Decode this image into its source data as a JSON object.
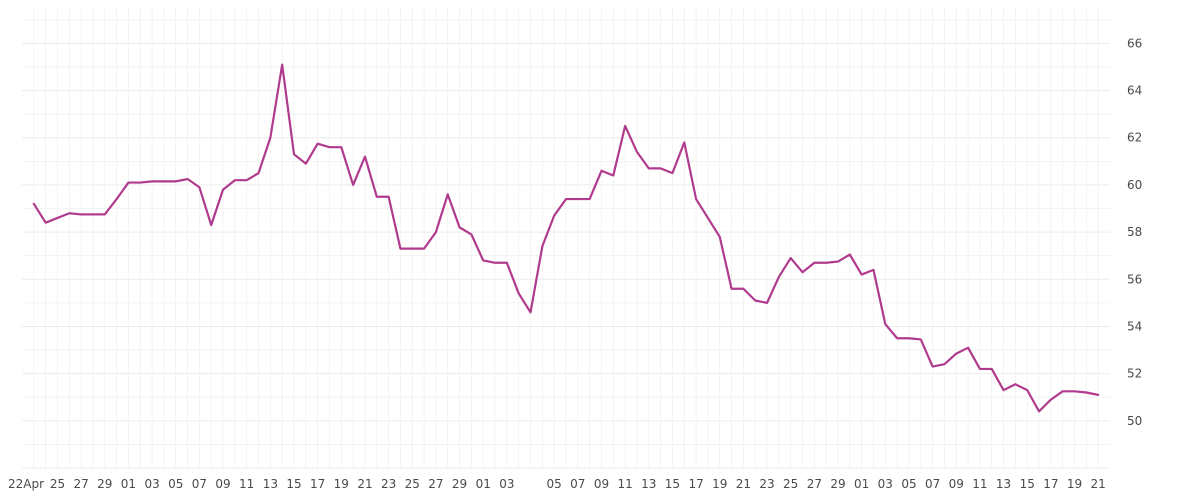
{
  "chart_data": {
    "type": "line",
    "grid": true,
    "line_color": "#b03a8e",
    "grid_color": "#ececec",
    "ylim": [
      48.0,
      67.5
    ],
    "y_ticks": [
      50,
      52,
      54,
      56,
      58,
      60,
      62,
      64,
      66
    ],
    "y_tick_labels": [
      "50",
      "52",
      "54",
      "56",
      "58",
      "60",
      "62",
      "64",
      "66"
    ],
    "x_ticks": [
      0,
      2,
      4,
      6,
      8,
      10,
      12,
      14,
      16,
      18,
      20,
      22,
      24,
      26,
      28,
      30,
      32,
      34,
      36,
      38,
      40,
      44,
      46,
      48,
      50,
      52,
      54,
      56,
      58,
      60,
      62,
      64,
      66,
      68,
      70,
      72,
      74,
      76,
      78,
      80,
      82,
      84,
      86,
      88,
      90
    ],
    "x_tick_labels": [
      "22Apr",
      "25",
      "27",
      "29",
      "01",
      "03",
      "05",
      "07",
      "09",
      "11",
      "13",
      "15",
      "17",
      "19",
      "21",
      "23",
      "25",
      "27",
      "29",
      "01",
      "03",
      "05",
      "07",
      "09",
      "11",
      "13",
      "15",
      "17",
      "19",
      "21",
      "23",
      "25",
      "27",
      "29",
      "01",
      "03",
      "05",
      "07",
      "09",
      "11",
      "13",
      "15",
      "17",
      "19",
      "21"
    ],
    "series": [
      {
        "x": [
          0,
          1,
          2,
          3,
          4,
          5,
          6,
          7,
          8,
          9,
          10,
          11,
          12,
          13,
          14,
          15,
          16,
          17,
          18,
          19,
          20,
          21,
          22,
          23,
          24,
          25,
          26,
          27,
          28,
          29,
          30,
          31,
          32,
          33,
          34,
          35,
          36,
          37,
          38,
          39,
          40,
          41,
          42,
          43,
          44,
          45,
          46,
          47,
          48,
          49,
          50,
          51,
          52,
          53,
          54,
          55,
          56,
          57,
          58,
          59,
          60,
          61,
          62,
          63,
          64,
          65,
          66,
          67,
          68,
          69,
          70,
          71,
          72,
          73,
          74,
          75,
          76,
          77,
          78,
          79,
          80,
          81,
          82,
          83,
          84,
          85,
          86,
          87,
          88,
          89,
          90
        ],
        "values": [
          59.2,
          58.4,
          58.6,
          58.8,
          58.75,
          58.75,
          58.75,
          59.4,
          60.1,
          60.1,
          60.15,
          60.15,
          60.15,
          60.25,
          59.9,
          58.3,
          59.8,
          60.2,
          60.2,
          60.5,
          62.0,
          65.1,
          61.3,
          60.9,
          61.75,
          61.6,
          61.6,
          60.0,
          61.2,
          59.5,
          59.5,
          57.3,
          57.3,
          57.3,
          58.0,
          59.6,
          58.2,
          57.9,
          56.8,
          56.7,
          56.7,
          55.4,
          54.6,
          57.4,
          58.7,
          59.4,
          59.4,
          59.4,
          60.6,
          60.4,
          62.5,
          61.4,
          60.7,
          60.7,
          60.5,
          61.8,
          59.4,
          58.6,
          57.8,
          55.6,
          55.6,
          55.1,
          55.0,
          56.1,
          56.9,
          56.3,
          56.7,
          56.7,
          56.75,
          57.05,
          56.2,
          56.4,
          54.1,
          53.5,
          53.5,
          53.45,
          52.3,
          52.4,
          52.85,
          53.1,
          52.2,
          52.2,
          51.3,
          51.55,
          51.3,
          50.4,
          50.9,
          51.25,
          51.25,
          51.2,
          51.1
        ]
      }
    ]
  }
}
